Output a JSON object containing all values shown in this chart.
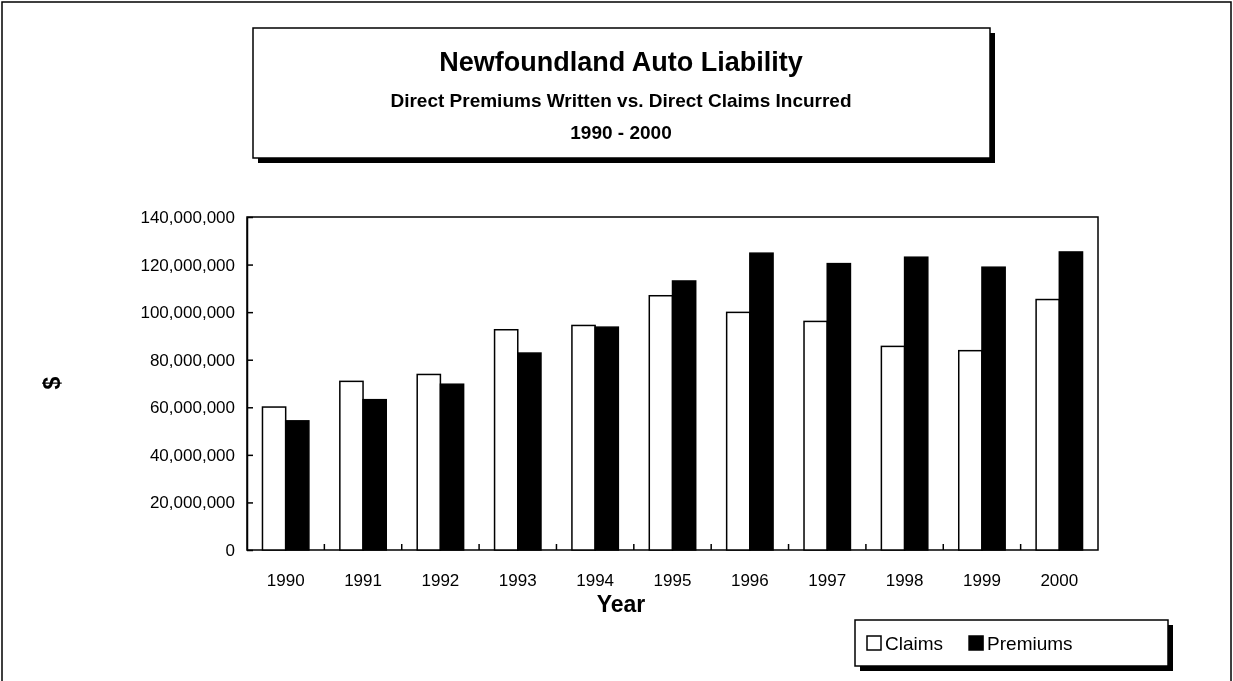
{
  "chart_data": {
    "type": "bar",
    "title": "Newfoundland Auto Liability",
    "subtitle": [
      "Direct Premiums Written vs. Direct Claims Incurred",
      "1990 - 2000"
    ],
    "xlabel": "Year",
    "ylabel": "$",
    "categories": [
      "1990",
      "1991",
      "1992",
      "1993",
      "1994",
      "1995",
      "1996",
      "1997",
      "1998",
      "1999",
      "2000"
    ],
    "series": [
      {
        "name": "Claims",
        "color": "#ffffff",
        "values": [
          60100000,
          70900000,
          73800000,
          92600000,
          94400000,
          106900000,
          99900000,
          96100000,
          85600000,
          83800000,
          105300000
        ]
      },
      {
        "name": "Premiums",
        "color": "#000000",
        "values": [
          54300000,
          63200000,
          69700000,
          82800000,
          93700000,
          113100000,
          124800000,
          120400000,
          123100000,
          118900000,
          125300000
        ]
      }
    ],
    "ylim": [
      0,
      140000000
    ],
    "yticks": [
      {
        "value": 0,
        "label": "0"
      },
      {
        "value": 20000000,
        "label": "20,000,000"
      },
      {
        "value": 40000000,
        "label": "40,000,000"
      },
      {
        "value": 60000000,
        "label": "60,000,000"
      },
      {
        "value": 80000000,
        "label": "80,000,000"
      },
      {
        "value": 100000000,
        "label": "100,000,000"
      },
      {
        "value": 120000000,
        "label": "120,000,000"
      },
      {
        "value": 140000000,
        "label": "140,000,000"
      }
    ],
    "grid": false,
    "legend": "bottom right"
  }
}
